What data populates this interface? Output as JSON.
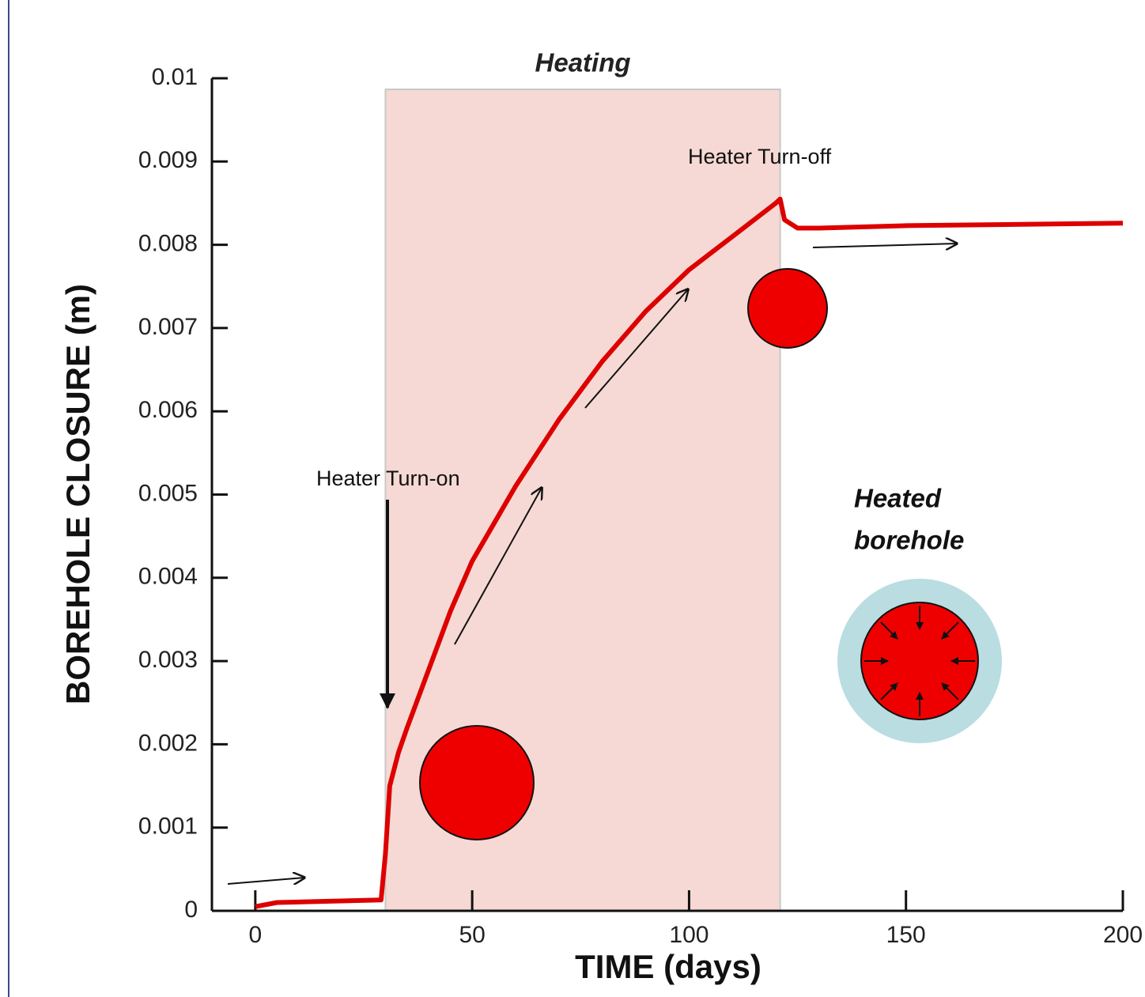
{
  "chart_data": {
    "type": "line",
    "x": [
      0,
      5,
      29,
      30,
      31,
      33,
      35,
      40,
      45,
      50,
      60,
      70,
      80,
      90,
      100,
      110,
      120,
      121,
      122,
      125,
      130,
      150,
      200
    ],
    "series": [
      {
        "color": "#dd0000",
        "values": [
          5e-05,
          0.0001,
          0.00013,
          0.00068,
          0.0015,
          0.0019,
          0.0022,
          0.0029,
          0.0036,
          0.0042,
          0.0051,
          0.0059,
          0.0066,
          0.0072,
          0.0077,
          0.0081,
          0.0085,
          0.00855,
          0.0083,
          0.0082,
          0.0082,
          0.00823,
          0.00826
        ]
      }
    ],
    "xlim": [
      -10,
      200
    ],
    "ylim": [
      0,
      0.01
    ],
    "xticks": [
      0,
      50,
      100,
      150,
      200
    ],
    "yticks": [
      0,
      0.001,
      0.002,
      0.003,
      0.004,
      0.005,
      0.006,
      0.007,
      0.008,
      0.009,
      0.01
    ],
    "xlabel": "TIME (days)",
    "ylabel": "BOREHOLE CLOSURE (m)",
    "shaded_region": {
      "label": "Heating",
      "x": [
        30,
        121
      ],
      "color": "#f6d9d4"
    },
    "annotations": [
      {
        "text": "Heater Turn-on"
      },
      {
        "text": "Heater Turn-off"
      },
      {
        "lines": [
          "Heated",
          "borehole"
        ]
      }
    ]
  }
}
